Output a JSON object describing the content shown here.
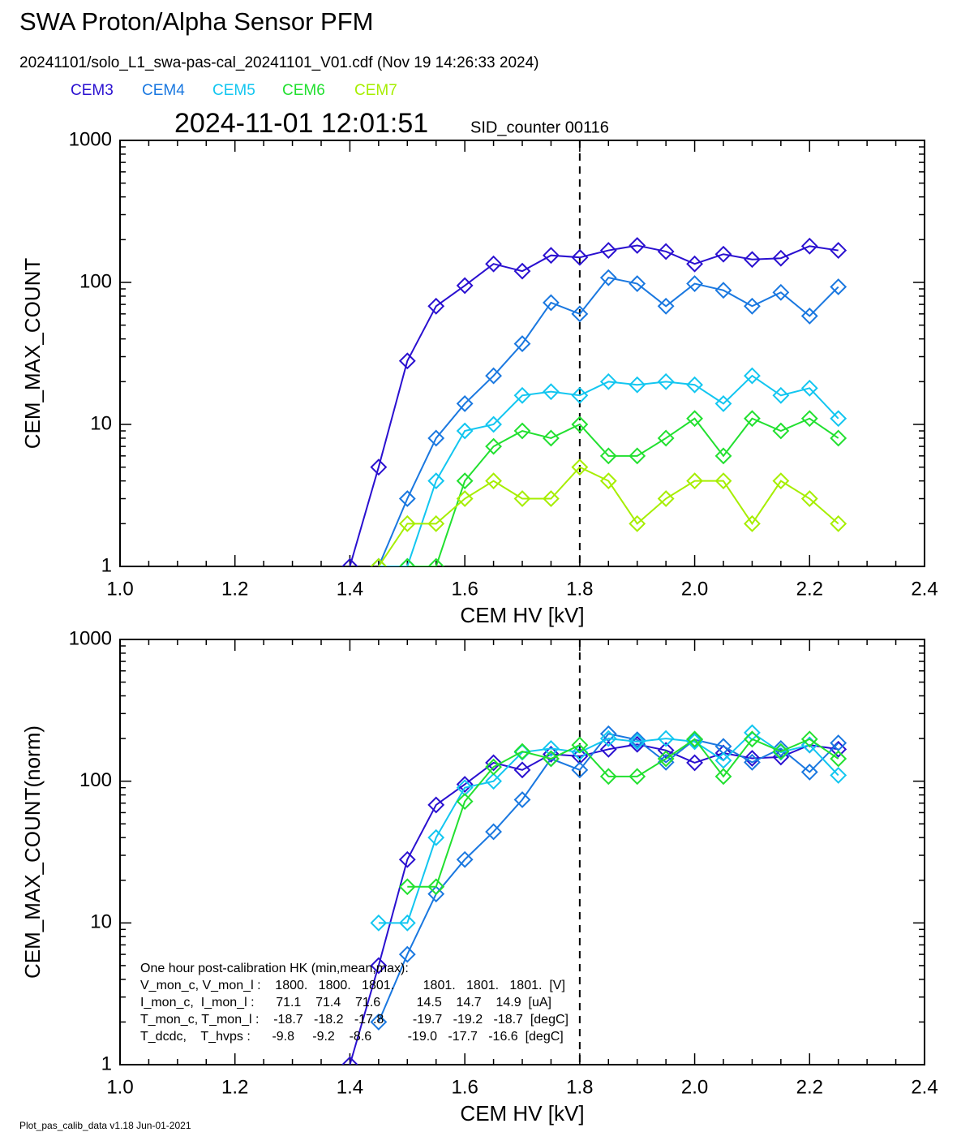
{
  "header": {
    "title": "SWA Proton/Alpha Sensor PFM",
    "file": "20241101/solo_L1_swa-pas-cal_20241101_V01.cdf  (Nov 19 14:26:33 2024)",
    "timestamp": "2024-11-01 12:01:51",
    "sid": "SID_counter 00116"
  },
  "footer": "Plot_pas_calib_data v1.18 Jun-01-2021",
  "chart_data": [
    {
      "type": "line",
      "xlabel": "CEM HV [kV]",
      "ylabel": "CEM_MAX_COUNT",
      "log_y": true,
      "vline": 1.8,
      "x": [
        1.4,
        1.45,
        1.5,
        1.55,
        1.6,
        1.65,
        1.7,
        1.75,
        1.8,
        1.85,
        1.9,
        1.95,
        2.0,
        2.05,
        2.1,
        2.15,
        2.2,
        2.25
      ],
      "xlim": [
        1.0,
        2.4
      ],
      "xticks": [
        {
          "value": 1.0,
          "label": "1.0"
        },
        1.2,
        1.4,
        1.6,
        1.8,
        {
          "value": 2.0,
          "label": "2.0"
        },
        2.2,
        2.4
      ],
      "ylim": [
        1,
        1000
      ],
      "yticks": [
        1,
        10,
        100,
        1000
      ],
      "series": [
        {
          "name": "CEM3",
          "color": "#2a10d0",
          "values": [
            1,
            5,
            28,
            68,
            95,
            135,
            120,
            155,
            150,
            168,
            182,
            165,
            135,
            158,
            145,
            148,
            180,
            168
          ]
        },
        {
          "name": "CEM4",
          "color": "#1a78e0",
          "values": [
            null,
            1,
            3,
            8,
            14,
            22,
            37,
            72,
            60,
            108,
            98,
            68,
            98,
            88,
            68,
            85,
            58,
            93
          ]
        },
        {
          "name": "CEM5",
          "color": "#12c6f0",
          "values": [
            null,
            1,
            1,
            4,
            9,
            10,
            16,
            17,
            16,
            20,
            19,
            20,
            19,
            14,
            22,
            16,
            18,
            11
          ]
        },
        {
          "name": "CEM6",
          "color": "#22e030",
          "values": [
            null,
            null,
            1,
            1,
            4,
            7,
            9,
            8,
            10,
            6,
            6,
            8,
            11,
            6,
            11,
            9,
            11,
            8
          ]
        },
        {
          "name": "CEM7",
          "color": "#a6ee00",
          "values": [
            null,
            1,
            2,
            2,
            3,
            4,
            3,
            3,
            5,
            4,
            2,
            3,
            4,
            4,
            2,
            4,
            3,
            2
          ]
        }
      ]
    },
    {
      "type": "line",
      "xlabel": "CEM HV [kV]",
      "ylabel": "CEM_MAX_COUNT(norm)",
      "log_y": true,
      "vline": 1.8,
      "x": [
        1.4,
        1.45,
        1.5,
        1.55,
        1.6,
        1.65,
        1.7,
        1.75,
        1.8,
        1.85,
        1.9,
        1.95,
        2.0,
        2.05,
        2.1,
        2.15,
        2.2,
        2.25
      ],
      "xlim": [
        1.0,
        2.4
      ],
      "xticks": [
        {
          "value": 1.0,
          "label": "1.0"
        },
        1.2,
        1.4,
        1.6,
        1.8,
        {
          "value": 2.0,
          "label": "2.0"
        },
        2.2,
        2.4
      ],
      "ylim": [
        1,
        1000
      ],
      "yticks": [
        1,
        10,
        100,
        1000
      ],
      "series": [
        {
          "color": "#2a10d0",
          "values": [
            1,
            5,
            28,
            68,
            95,
            135,
            120,
            155,
            150,
            168,
            182,
            165,
            135,
            158,
            145,
            148,
            180,
            168
          ]
        },
        {
          "color": "#1a78e0",
          "values": [
            null,
            2,
            6,
            16,
            28,
            44,
            74,
            144,
            120,
            216,
            196,
            136,
            196,
            176,
            136,
            170,
            116,
            186
          ]
        },
        {
          "color": "#12c6f0",
          "values": [
            null,
            10,
            10,
            40,
            90,
            100,
            160,
            170,
            160,
            200,
            190,
            200,
            190,
            140,
            220,
            160,
            180,
            110
          ]
        },
        {
          "color": "#22e030",
          "values": [
            null,
            null,
            18,
            18,
            72,
            126,
            162,
            144,
            180,
            108,
            108,
            144,
            198,
            108,
            198,
            162,
            198,
            144
          ]
        }
      ],
      "annotation": [
        "One hour post-calibration HK (min,mean,max):",
        "V_mon_c, V_mon_l :    1800.   1800.   1801.        1801.   1801.   1801.  [V]",
        "I_mon_c,  I_mon_l :      71.1    71.4    71.6          14.5    14.7    14.9  [uA]",
        "T_mon_c, T_mon_l :    -18.7   -18.2   -17.8        -19.7   -19.2   -18.7  [degC]",
        "T_dcdc,    T_hvps :      -9.8     -9.2    -8.6          -19.0   -17.7   -16.6  [degC]"
      ]
    }
  ]
}
